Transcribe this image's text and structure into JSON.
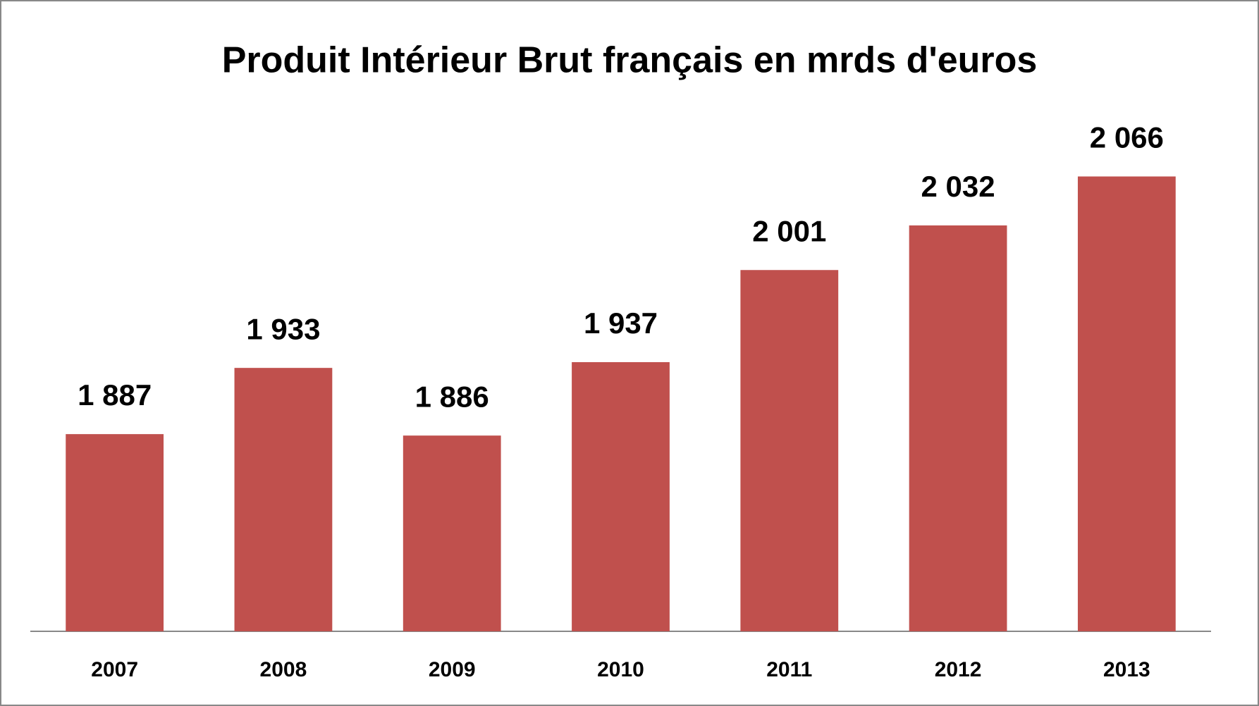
{
  "chart_data": {
    "type": "bar",
    "title": "Produit Intérieur Brut français en mrds d'euros",
    "categories": [
      "2007",
      "2008",
      "2009",
      "2010",
      "2011",
      "2012",
      "2013"
    ],
    "values": [
      1887,
      1933,
      1886,
      1937,
      2001,
      2032,
      2066
    ],
    "value_labels": [
      "1 887",
      "1 933",
      "1 886",
      "1 937",
      "2 001",
      "2 032",
      "2 066"
    ],
    "color": "#c0504d",
    "ylim": [
      1750,
      2100
    ]
  }
}
